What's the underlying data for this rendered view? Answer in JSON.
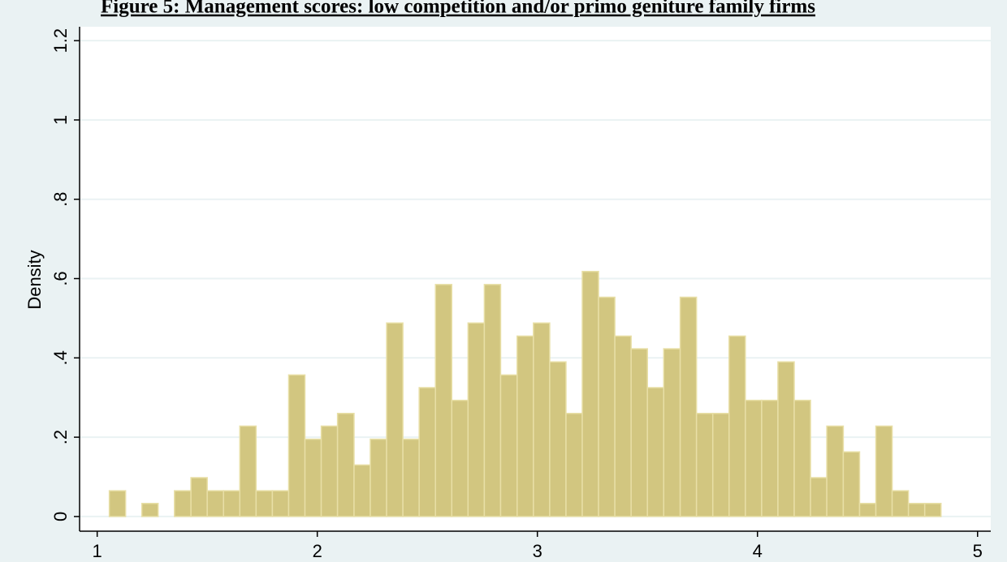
{
  "chart_data": {
    "type": "histogram",
    "title": "Figure 5: Management scores: low competition and/or primo geniture family firms",
    "y_label": "Density",
    "bins": [
      1.055,
      1.129,
      1.203,
      1.277,
      1.351,
      1.426,
      1.5,
      1.574,
      1.648,
      1.722,
      1.796,
      1.87,
      1.944,
      2.018,
      2.092,
      2.167,
      2.241,
      2.315,
      2.389,
      2.463,
      2.537,
      2.611,
      2.685,
      2.759,
      2.833,
      2.908,
      2.982,
      3.056,
      3.13,
      3.204,
      3.278,
      3.352,
      3.426,
      3.5,
      3.574,
      3.649,
      3.723,
      3.797,
      3.871,
      3.945,
      4.019,
      4.093,
      4.167,
      4.241,
      4.315,
      4.39,
      4.464,
      4.538,
      4.612,
      4.686,
      4.76,
      4.834
    ],
    "values": [
      0.065,
      0,
      0.033,
      0,
      0.065,
      0.098,
      0.065,
      0.065,
      0.228,
      0.065,
      0.065,
      0.357,
      0.195,
      0.228,
      0.26,
      0.13,
      0.195,
      0.488,
      0.195,
      0.325,
      0.585,
      0.293,
      0.488,
      0.585,
      0.357,
      0.455,
      0.488,
      0.39,
      0.26,
      0.618,
      0.553,
      0.455,
      0.423,
      0.325,
      0.423,
      0.553,
      0.26,
      0.26,
      0.455,
      0.293,
      0.293,
      0.39,
      0.293,
      0.098,
      0.228,
      0.163,
      0.033,
      0.228,
      0.065,
      0.033,
      0.033
    ],
    "color": "#d2c680",
    "xlim": [
      0.92,
      5.06
    ],
    "ylim": [
      -0.037,
      1.235
    ],
    "xticks": [
      1,
      2,
      3,
      4,
      5
    ],
    "yticks": [
      0,
      {
        "value": 0.2,
        "label": ".2"
      },
      {
        "value": 0.4,
        "label": ".4"
      },
      {
        "value": 0.6,
        "label": ".6"
      },
      {
        "value": 0.8,
        "label": ".8"
      },
      1,
      1.2
    ],
    "grid": true
  }
}
